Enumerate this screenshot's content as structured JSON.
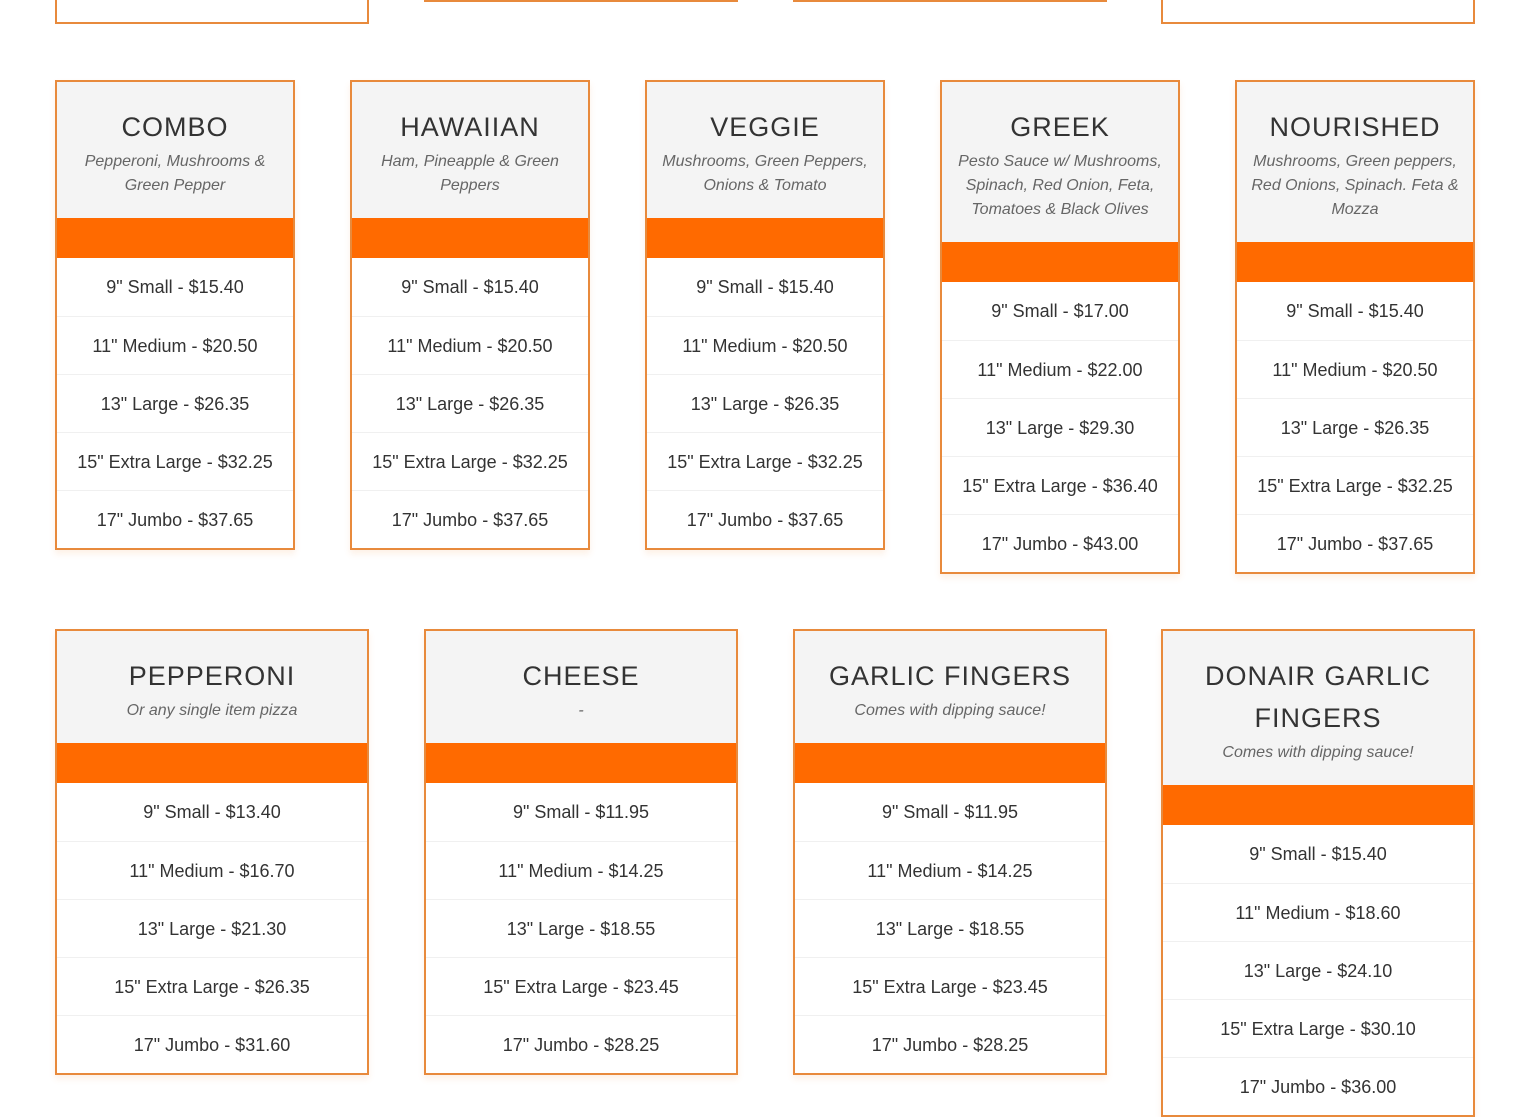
{
  "row1": [
    {
      "title": "COMBO",
      "desc": "Pepperoni, Mushrooms & Green Pepper",
      "prices": [
        "9\" Small - $15.40",
        "11\" Medium - $20.50",
        "13\" Large - $26.35",
        "15\" Extra Large - $32.25",
        "17\" Jumbo - $37.65"
      ]
    },
    {
      "title": "HAWAIIAN",
      "desc": "Ham, Pineapple & Green Peppers",
      "prices": [
        "9\" Small - $15.40",
        "11\" Medium - $20.50",
        "13\" Large - $26.35",
        "15\" Extra Large - $32.25",
        "17\" Jumbo - $37.65"
      ]
    },
    {
      "title": "VEGGIE",
      "desc": "Mushrooms, Green Peppers, Onions & Tomato",
      "prices": [
        "9\" Small - $15.40",
        "11\" Medium - $20.50",
        "13\" Large - $26.35",
        "15\" Extra Large - $32.25",
        "17\" Jumbo - $37.65"
      ]
    },
    {
      "title": "GREEK",
      "desc": "Pesto Sauce w/ Mushrooms, Spinach, Red Onion, Feta, Tomatoes & Black Olives",
      "prices": [
        "9\" Small - $17.00",
        "11\" Medium - $22.00",
        "13\" Large - $29.30",
        "15\" Extra Large - $36.40",
        "17\" Jumbo - $43.00"
      ]
    },
    {
      "title": "NOURISHED",
      "desc": "Mushrooms, Green peppers, Red Onions, Spinach. Feta & Mozza",
      "prices": [
        "9\" Small - $15.40",
        "11\" Medium - $20.50",
        "13\" Large - $26.35",
        "15\" Extra Large - $32.25",
        "17\" Jumbo - $37.65"
      ]
    }
  ],
  "row2": [
    {
      "title": "PEPPERONI",
      "desc": "Or any single item pizza",
      "prices": [
        "9\" Small - $13.40",
        "11\" Medium - $16.70",
        "13\" Large - $21.30",
        "15\" Extra Large - $26.35",
        "17\" Jumbo - $31.60"
      ]
    },
    {
      "title": "CHEESE",
      "desc": "-",
      "prices": [
        "9\" Small - $11.95",
        "11\" Medium - $14.25",
        "13\" Large - $18.55",
        "15\" Extra Large - $23.45",
        "17\" Jumbo - $28.25"
      ]
    },
    {
      "title": "GARLIC FINGERS",
      "desc": "Comes with dipping sauce!",
      "prices": [
        "9\" Small - $11.95",
        "11\" Medium - $14.25",
        "13\" Large - $18.55",
        "15\" Extra Large - $23.45",
        "17\" Jumbo - $28.25"
      ]
    },
    {
      "title": "DONAIR GARLIC FINGERS",
      "desc": "Comes with dipping sauce!",
      "prices": [
        "9\" Small - $15.40",
        "11\" Medium - $18.60",
        "13\" Large - $24.10",
        "15\" Extra Large - $30.10",
        "17\" Jumbo - $36.00"
      ]
    }
  ],
  "colors": {
    "accent": "#ff6a00",
    "border": "#e88a3c",
    "header_bg": "#f4f4f4"
  }
}
